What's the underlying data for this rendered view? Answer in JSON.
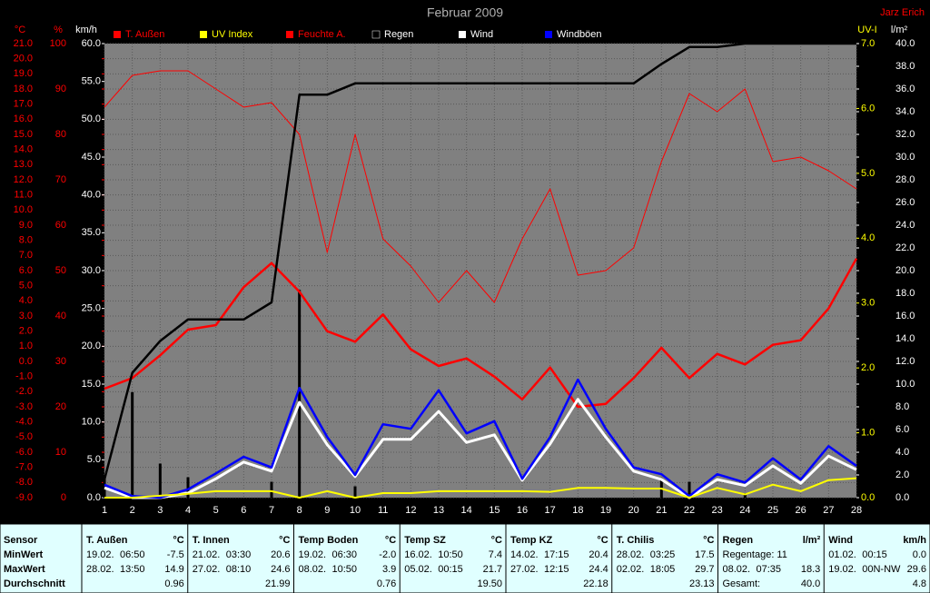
{
  "chart_data": {
    "type": "line",
    "title": "Februar 2009",
    "author": "Jarz Erich",
    "x": [
      1,
      2,
      3,
      4,
      5,
      6,
      7,
      8,
      9,
      10,
      11,
      12,
      13,
      14,
      15,
      16,
      17,
      18,
      19,
      20,
      21,
      22,
      23,
      24,
      25,
      26,
      27,
      28
    ],
    "xlim": [
      1,
      28
    ],
    "xticks": [
      1,
      2,
      3,
      4,
      5,
      6,
      7,
      8,
      9,
      10,
      11,
      12,
      13,
      14,
      15,
      16,
      17,
      18,
      19,
      20,
      21,
      22,
      23,
      24,
      25,
      26,
      27,
      28
    ],
    "grid": true,
    "ylabel": "°C",
    "y_color": "#ff0000",
    "ylim": [
      -9,
      21
    ],
    "yticks": [
      {
        "value": -9,
        "label": "-9.0"
      },
      {
        "value": -8,
        "label": "-8.0"
      },
      {
        "value": -7,
        "label": "-7.0"
      },
      {
        "value": -6,
        "label": "-6.0"
      },
      {
        "value": -5,
        "label": "-5.0"
      },
      {
        "value": -4,
        "label": "-4.0"
      },
      {
        "value": -3,
        "label": "-3.0"
      },
      {
        "value": -2,
        "label": "-2.0"
      },
      {
        "value": -1,
        "label": "-1.0"
      },
      {
        "value": 0,
        "label": "0.0"
      },
      {
        "value": 1,
        "label": "1.0"
      },
      {
        "value": 2,
        "label": "2.0"
      },
      {
        "value": 3,
        "label": "3.0"
      },
      {
        "value": 4,
        "label": "4.0"
      },
      {
        "value": 5,
        "label": "5.0"
      },
      {
        "value": 6,
        "label": "6.0"
      },
      {
        "value": 7,
        "label": "7.0"
      },
      {
        "value": 8,
        "label": "8.0"
      },
      {
        "value": 9,
        "label": "9.0"
      },
      {
        "value": 10,
        "label": "10.0"
      },
      {
        "value": 11,
        "label": "11.0"
      },
      {
        "value": 12,
        "label": "12.0"
      },
      {
        "value": 13,
        "label": "13.0"
      },
      {
        "value": 14,
        "label": "14.0"
      },
      {
        "value": 15,
        "label": "15.0"
      },
      {
        "value": 16,
        "label": "16.0"
      },
      {
        "value": 17,
        "label": "17.0"
      },
      {
        "value": 18,
        "label": "18.0"
      },
      {
        "value": 19,
        "label": "19.0"
      },
      {
        "value": 20,
        "label": "20.0"
      },
      {
        "value": 21,
        "label": "21.0"
      }
    ],
    "y3label": "%",
    "y3_color": "#ff0000",
    "y3lim": [
      0,
      100
    ],
    "y3ticks": [
      0,
      10,
      20,
      30,
      40,
      50,
      60,
      70,
      80,
      90,
      100
    ],
    "y4label": "km/h",
    "y4_color": "#ffffff",
    "y4lim": [
      0,
      60
    ],
    "y4ticks": [
      {
        "value": 0,
        "label": "0.0"
      },
      {
        "value": 5,
        "label": "5.0"
      },
      {
        "value": 10,
        "label": "10.0"
      },
      {
        "value": 15,
        "label": "15.0"
      },
      {
        "value": 20,
        "label": "20.0"
      },
      {
        "value": 25,
        "label": "25.0"
      },
      {
        "value": 30,
        "label": "30.0"
      },
      {
        "value": 35,
        "label": "35.0"
      },
      {
        "value": 40,
        "label": "40.0"
      },
      {
        "value": 45,
        "label": "45.0"
      },
      {
        "value": 50,
        "label": "50.0"
      },
      {
        "value": 55,
        "label": "55.0"
      },
      {
        "value": 60,
        "label": "60.0"
      }
    ],
    "y2label": "UV-I",
    "y2_color": "#ffff00",
    "y2lim": [
      0,
      7
    ],
    "y2ticks": [
      {
        "value": 0,
        "label": "0.0"
      },
      {
        "value": 1,
        "label": "1.0"
      },
      {
        "value": 2,
        "label": "2.0"
      },
      {
        "value": 3,
        "label": "3.0"
      },
      {
        "value": 4,
        "label": "4.0"
      },
      {
        "value": 5,
        "label": "5.0"
      },
      {
        "value": 6,
        "label": "6.0"
      },
      {
        "value": 7,
        "label": "7.0"
      }
    ],
    "y5label": "l/m²",
    "y5_color": "#ffffff",
    "y5lim": [
      0,
      40
    ],
    "y5ticks": [
      {
        "value": 0,
        "label": "0.0"
      },
      {
        "value": 2,
        "label": "2.0"
      },
      {
        "value": 4,
        "label": "4.0"
      },
      {
        "value": 6,
        "label": "6.0"
      },
      {
        "value": 8,
        "label": "8.0"
      },
      {
        "value": 10,
        "label": "10.0"
      },
      {
        "value": 12,
        "label": "12.0"
      },
      {
        "value": 14,
        "label": "14.0"
      },
      {
        "value": 16,
        "label": "16.0"
      },
      {
        "value": 18,
        "label": "18.0"
      },
      {
        "value": 20,
        "label": "20.0"
      },
      {
        "value": 22,
        "label": "22.0"
      },
      {
        "value": 24,
        "label": "24.0"
      },
      {
        "value": 26,
        "label": "26.0"
      },
      {
        "value": 28,
        "label": "28.0"
      },
      {
        "value": 30,
        "label": "30.0"
      },
      {
        "value": 32,
        "label": "32.0"
      },
      {
        "value": 34,
        "label": "34.0"
      },
      {
        "value": 36,
        "label": "36.0"
      },
      {
        "value": 38,
        "label": "38.0"
      },
      {
        "value": 40,
        "label": "40.0"
      }
    ],
    "bars": {
      "axis": "y5",
      "color": "#000000",
      "values": [
        1.8,
        9.3,
        3.0,
        1.8,
        0,
        0,
        1.4,
        18.3,
        0,
        1.0,
        0,
        0,
        0,
        0,
        0,
        0,
        0,
        0,
        0,
        0,
        1.7,
        1.4,
        0,
        0.4,
        0,
        0,
        0,
        0
      ]
    },
    "series": [
      {
        "name": "T. Außen",
        "color": "#ff0000",
        "legend_text_color": "#ff0000",
        "axis": "y",
        "values": [
          -1.8,
          -1.1,
          0.4,
          2.1,
          2.4,
          4.9,
          6.5,
          4.6,
          2.0,
          1.3,
          3.1,
          0.8,
          -0.3,
          0.2,
          -1.0,
          -2.5,
          -0.4,
          -3.0,
          -2.8,
          -1.1,
          0.9,
          -1.1,
          0.5,
          -0.2,
          1.1,
          1.4,
          3.5,
          6.8
        ]
      },
      {
        "name": "UV Index",
        "color": "#ffff00",
        "legend_text_color": "#ffff00",
        "axis": "y2",
        "values": [
          0,
          0,
          0.03,
          0.06,
          0.1,
          0.1,
          0.1,
          0,
          0.1,
          0,
          0.07,
          0.07,
          0.1,
          0.1,
          0.1,
          0.1,
          0.09,
          0.15,
          0.15,
          0.14,
          0.14,
          0,
          0.15,
          0.05,
          0.2,
          0.1,
          0.27,
          0.3
        ]
      },
      {
        "name": "Feuchte A.",
        "color": "#ff0000",
        "legend_text_color": "#ff0000",
        "axis": "y3",
        "values": [
          86,
          93,
          94,
          94,
          90,
          86,
          87,
          80,
          54,
          80,
          57,
          51,
          43,
          50,
          43,
          57,
          68,
          49,
          50,
          55,
          74,
          89,
          85,
          90,
          74,
          75,
          72,
          68
        ]
      },
      {
        "name": "Regen",
        "color": "#000000",
        "legend_text_color": "#ffffff",
        "axis": "y5",
        "values": [
          1.6,
          11.0,
          13.8,
          15.7,
          15.7,
          15.7,
          17.2,
          35.5,
          35.5,
          36.5,
          36.5,
          36.5,
          36.5,
          36.5,
          36.5,
          36.5,
          36.5,
          36.5,
          36.5,
          36.5,
          38.2,
          39.7,
          39.7,
          40,
          40,
          40,
          40,
          40
        ]
      },
      {
        "name": "Wind",
        "color": "#ffffff",
        "legend_text_color": "#ffffff",
        "axis": "y4",
        "values": [
          1.3,
          0,
          0,
          0.6,
          2.5,
          4.7,
          3.5,
          12.6,
          7.0,
          2.8,
          7.7,
          7.7,
          11.4,
          7.3,
          8.3,
          2.3,
          7.1,
          13.0,
          8.0,
          3.5,
          2.4,
          0,
          2.4,
          1.6,
          4.2,
          1.9,
          5.5,
          3.7
        ]
      },
      {
        "name": "Windböen",
        "color": "#0000ff",
        "legend_text_color": "#ffffff",
        "axis": "y4",
        "values": [
          1.7,
          0.2,
          0,
          1.1,
          3.2,
          5.4,
          4.0,
          14.5,
          8.0,
          3.0,
          9.7,
          9.1,
          14.2,
          8.5,
          10.1,
          2.5,
          8.0,
          15.6,
          9.1,
          4.0,
          3.1,
          0.2,
          3.1,
          2.0,
          5.2,
          2.4,
          6.8,
          4.2
        ]
      }
    ]
  },
  "table": {
    "header_label": "Sensor",
    "row_labels": [
      "MinWert",
      "MaxWert",
      "Durchschnitt"
    ],
    "columns": [
      {
        "name": "T. Außen",
        "unit": "°C",
        "cells": [
          {
            "left": "19.02.",
            "mid": "06:50",
            "right": "-7.5"
          },
          {
            "left": "28.02.",
            "mid": "13:50",
            "right": "14.9"
          },
          {
            "right": "0.96"
          }
        ]
      },
      {
        "name": "T. Innen",
        "unit": "°C",
        "cells": [
          {
            "left": "21.02.",
            "mid": "03:30",
            "right": "20.6"
          },
          {
            "left": "27.02.",
            "mid": "08:10",
            "right": "24.6"
          },
          {
            "right": "21.99"
          }
        ]
      },
      {
        "name": "Temp Boden",
        "unit": "°C",
        "cells": [
          {
            "left": "19.02.",
            "mid": "06:30",
            "right": "-2.0"
          },
          {
            "left": "08.02.",
            "mid": "10:50",
            "right": "3.9"
          },
          {
            "right": "0.76"
          }
        ]
      },
      {
        "name": "Temp SZ",
        "unit": "°C",
        "cells": [
          {
            "left": "16.02.",
            "mid": "10:50",
            "right": "7.4"
          },
          {
            "left": "05.02.",
            "mid": "00:15",
            "right": "21.7"
          },
          {
            "right": "19.50"
          }
        ]
      },
      {
        "name": "Temp KZ",
        "unit": "°C",
        "cells": [
          {
            "left": "14.02.",
            "mid": "17:15",
            "right": "20.4"
          },
          {
            "left": "27.02.",
            "mid": "12:15",
            "right": "24.4"
          },
          {
            "right": "22.18"
          }
        ]
      },
      {
        "name": "T. Chilis",
        "unit": "°C",
        "cells": [
          {
            "left": "28.02.",
            "mid": "03:25",
            "right": "17.5"
          },
          {
            "left": "02.02.",
            "mid": "18:05",
            "right": "29.7"
          },
          {
            "right": "23.13"
          }
        ]
      },
      {
        "name": "Regen",
        "unit": "l/m²",
        "cells": [
          {
            "left": "Regentage: 11"
          },
          {
            "left": "08.02.",
            "mid": "07:35",
            "right": "18.3"
          },
          {
            "left": "Gesamt:",
            "right": "40.0"
          }
        ]
      },
      {
        "name": "Wind",
        "unit": "km/h",
        "cells": [
          {
            "left": "01.02.",
            "mid": "00:15",
            "right": "0.0"
          },
          {
            "left": "19.02.",
            "mid": "00N-NW",
            "right": "29.6"
          },
          {
            "right": "4.8"
          }
        ]
      }
    ]
  }
}
